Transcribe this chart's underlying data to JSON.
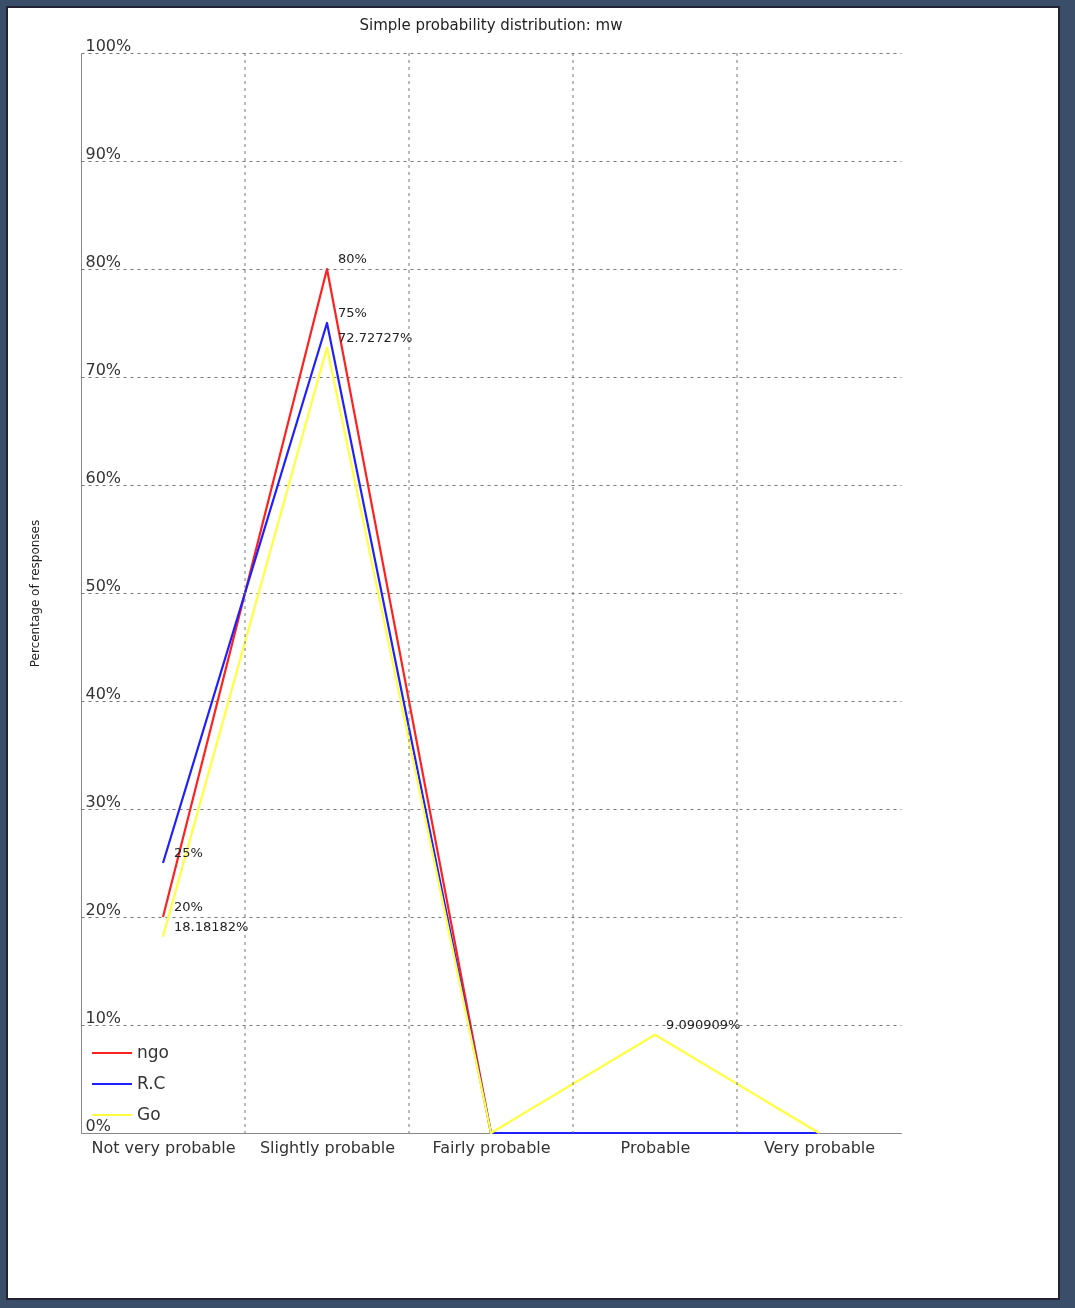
{
  "chart_data": {
    "type": "line",
    "title": "Simple probability distribution: mw",
    "ylabel": "Percentage of responses",
    "categories": [
      "Not very probable",
      "Slightly probable",
      "Fairly probable",
      "Probable",
      "Very probable"
    ],
    "series": [
      {
        "name": "ngo",
        "color": "#ff2020",
        "values": [
          20,
          80,
          0,
          0,
          0
        ],
        "value_labels": [
          "20%",
          "80%",
          null,
          null,
          null
        ]
      },
      {
        "name": "R.C",
        "color": "#2020ff",
        "values": [
          25,
          75,
          0,
          0,
          0
        ],
        "value_labels": [
          "25%",
          "75%",
          null,
          null,
          null
        ]
      },
      {
        "name": "Go",
        "color": "#ffff40",
        "values": [
          18.18182,
          72.72727,
          0,
          9.090909,
          0
        ],
        "value_labels": [
          "18.18182%",
          "72.72727%",
          null,
          "9.090909%",
          null
        ]
      }
    ],
    "ylim": [
      0,
      100
    ],
    "yticks": [
      {
        "value": 0,
        "label": "0%"
      },
      {
        "value": 10,
        "label": "10%"
      },
      {
        "value": 20,
        "label": "20%"
      },
      {
        "value": 30,
        "label": "30%"
      },
      {
        "value": 40,
        "label": "40%"
      },
      {
        "value": 50,
        "label": "50%"
      },
      {
        "value": 60,
        "label": "60%"
      },
      {
        "value": 70,
        "label": "70%"
      },
      {
        "value": 80,
        "label": "80%"
      },
      {
        "value": 90,
        "label": "90%"
      },
      {
        "value": 100,
        "label": "100%"
      }
    ],
    "grid": true,
    "legend": "bottom left",
    "marker": "none",
    "line_style": "solid"
  }
}
